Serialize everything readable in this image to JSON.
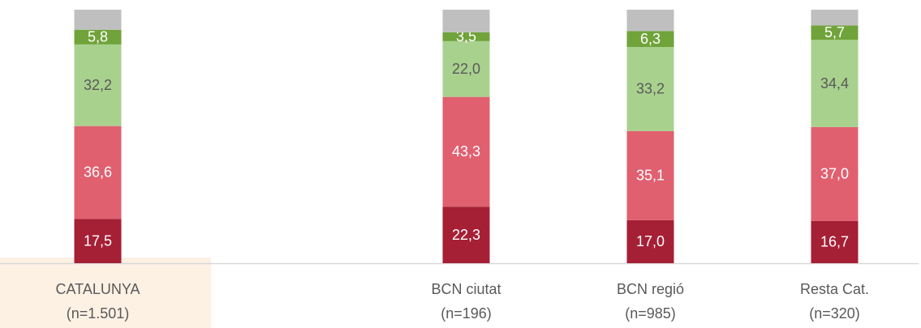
{
  "chart_data": {
    "type": "stacked_bar",
    "categories": [
      [
        "CATALUNYA",
        "(n=1.501)"
      ],
      null,
      [
        "BCN ciutat",
        "(n=196)"
      ],
      [
        "BCN regió",
        "(n=985)"
      ],
      [
        "Resta Cat.",
        "(n=320)"
      ]
    ],
    "ylim": [
      0,
      100
    ],
    "series": [
      {
        "color": "#a51f35",
        "label_color": "#ffffff",
        "values": [
          17.5,
          null,
          22.3,
          17.0,
          16.7
        ],
        "value_labels": [
          "17,5",
          null,
          "22,3",
          "17,0",
          "16,7"
        ]
      },
      {
        "color": "#e06070",
        "label_color": "#ffffff",
        "values": [
          36.6,
          null,
          43.3,
          35.1,
          37.0
        ],
        "value_labels": [
          "36,6",
          null,
          "43,3",
          "35,1",
          "37,0"
        ]
      },
      {
        "color": "#a9d18e",
        "label_color": "#595959",
        "values": [
          32.2,
          null,
          22.0,
          33.2,
          34.4
        ],
        "value_labels": [
          "32,2",
          null,
          "22,0",
          "33,2",
          "34,4"
        ]
      },
      {
        "color": "#70a33a",
        "label_color": "#ffffff",
        "values": [
          5.8,
          null,
          3.5,
          6.3,
          5.7
        ],
        "value_labels": [
          "5,8",
          null,
          "3,5",
          "6,3",
          "5,7"
        ]
      },
      {
        "color": "#bfbfbf",
        "values": [
          7.9,
          null,
          8.9,
          8.4,
          6.2
        ]
      }
    ]
  }
}
